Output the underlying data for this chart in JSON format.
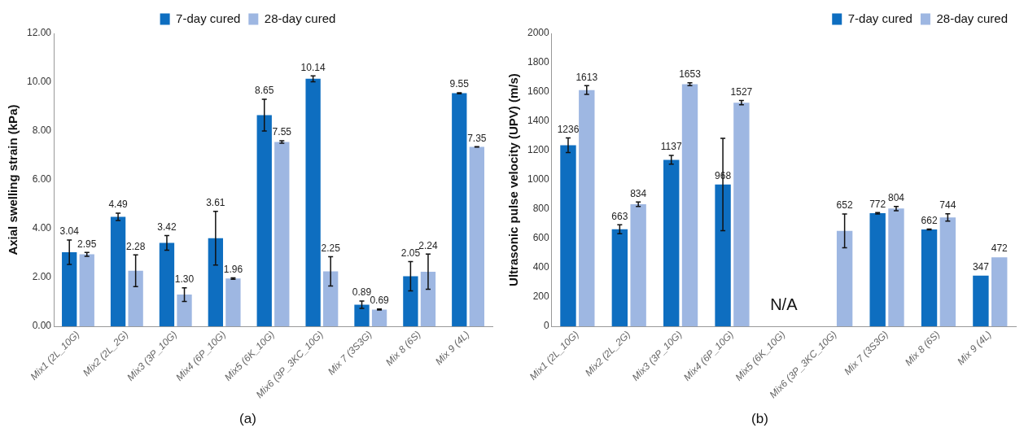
{
  "chart_data": [
    {
      "type": "bar",
      "title": "(a)",
      "ylabel": "Axial swelling strain (kPa)",
      "categories": [
        "Mix1 (2L_10G)",
        "Mix2 (2L_2G)",
        "Mix3 (3P_10G)",
        "Mix4 (6P_10G)",
        "Mix5 (6K_10G)",
        "Mix6 (3P_3KC_10G)",
        "Mix 7 (3S3G)",
        "Mix 8 (6S)",
        "Mix 9 (4L)"
      ],
      "series": [
        {
          "name": "7-day cured",
          "color": "#0e6ec0",
          "values": [
            3.04,
            4.49,
            3.42,
            3.61,
            8.65,
            10.14,
            0.89,
            2.05,
            9.55
          ],
          "errors": [
            0.5,
            0.15,
            0.3,
            1.1,
            0.65,
            0.12,
            0.15,
            0.6,
            0.02
          ],
          "value_labels": [
            "3.04",
            "4.49",
            "3.42",
            "3.61",
            "8.65",
            "10.14",
            "0.89",
            "2.05",
            "9.55"
          ]
        },
        {
          "name": "28-day cured",
          "color": "#9eb7e2",
          "values": [
            2.95,
            2.28,
            1.3,
            1.96,
            7.55,
            2.25,
            0.69,
            2.24,
            7.35
          ],
          "errors": [
            0.08,
            0.65,
            0.28,
            0.03,
            0.05,
            0.6,
            0.02,
            0.72,
            0.01
          ],
          "value_labels": [
            "2.95",
            "2.28",
            "1.30",
            "1.96",
            "7.55",
            "2.25",
            "0.69",
            "2.24",
            "7.35"
          ]
        }
      ],
      "ylim": [
        0,
        12
      ],
      "yticks": [
        {
          "value": 0,
          "label": "0.00"
        },
        {
          "value": 2,
          "label": "2.00"
        },
        {
          "value": 4,
          "label": "4.00"
        },
        {
          "value": 6,
          "label": "6.00"
        },
        {
          "value": 8,
          "label": "8.00"
        },
        {
          "value": 10,
          "label": "10.00"
        },
        {
          "value": 12,
          "label": "12.00"
        }
      ],
      "grid": false,
      "legend": "top"
    },
    {
      "type": "bar",
      "title": "(b)",
      "ylabel": "Ultrasonic pulse velocity (UPV) (m/s)",
      "categories": [
        "Mix1 (2L_10G)",
        "Mix2 (2L_2G)",
        "Mix3 (3P_10G)",
        "Mix4 (6P_10G)",
        "Mix5 (6K_10G)",
        "Mix6 (3P_3KC_10G)",
        "Mix 7 (3S3G)",
        "Mix 8 (6S)",
        "Mix 9 (4L)"
      ],
      "series": [
        {
          "name": "7-day cured",
          "color": "#0e6ec0",
          "values": [
            1236,
            663,
            1137,
            968,
            null,
            null,
            772,
            662,
            347
          ],
          "errors": [
            50,
            30,
            30,
            315,
            null,
            null,
            5,
            3,
            null
          ],
          "value_labels": [
            "1236",
            "663",
            "1137",
            "968",
            null,
            null,
            "772",
            "662",
            "347"
          ]
        },
        {
          "name": "28-day cured",
          "color": "#9eb7e2",
          "values": [
            1613,
            834,
            1653,
            1527,
            null,
            652,
            804,
            744,
            472
          ],
          "errors": [
            30,
            15,
            10,
            15,
            null,
            115,
            15,
            25,
            null
          ],
          "value_labels": [
            "1613",
            "834",
            "1653",
            "1527",
            null,
            "652",
            "804",
            "744",
            "472"
          ]
        }
      ],
      "ylim": [
        0,
        2000
      ],
      "yticks": [
        0,
        200,
        400,
        600,
        800,
        1000,
        1200,
        1400,
        1600,
        1800,
        2000
      ],
      "annotations": [
        "N/A"
      ],
      "grid": false,
      "legend": "top right"
    }
  ]
}
